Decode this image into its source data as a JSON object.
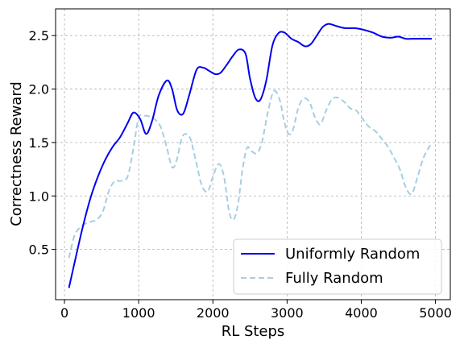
{
  "chart_data": {
    "type": "line",
    "title": "",
    "xlabel": "RL Steps",
    "ylabel": "Correctness Reward",
    "xlim": [
      -120,
      5200
    ],
    "ylim": [
      0.03,
      2.75
    ],
    "x_ticks": [
      0,
      1000,
      2000,
      3000,
      4000,
      5000
    ],
    "y_ticks": [
      0.5,
      1.0,
      1.5,
      2.0,
      2.5
    ],
    "x_tick_labels": [
      "0",
      "1000",
      "2000",
      "3000",
      "4000",
      "5000"
    ],
    "y_tick_labels": [
      "0.5",
      "1.0",
      "1.5",
      "2.0",
      "2.5"
    ],
    "grid": true,
    "legend_position": "lower-right",
    "series": [
      {
        "name": "Uniformly Random",
        "color": "#0000ee",
        "style": "solid",
        "x": [
          60,
          150,
          250,
          350,
          450,
          550,
          650,
          750,
          850,
          930,
          1020,
          1100,
          1180,
          1270,
          1380,
          1450,
          1520,
          1600,
          1680,
          1780,
          1870,
          1950,
          2030,
          2100,
          2180,
          2270,
          2350,
          2440,
          2500,
          2570,
          2640,
          2720,
          2800,
          2880,
          2960,
          3060,
          3150,
          3240,
          3320,
          3400,
          3480,
          3560,
          3660,
          3780,
          3900,
          4000,
          4150,
          4280,
          4400,
          4500,
          4600,
          4680,
          4760,
          4840,
          4950
        ],
        "y": [
          0.14,
          0.42,
          0.72,
          0.98,
          1.18,
          1.34,
          1.46,
          1.55,
          1.68,
          1.78,
          1.72,
          1.58,
          1.7,
          1.94,
          2.08,
          2.0,
          1.8,
          1.77,
          1.94,
          2.18,
          2.2,
          2.17,
          2.14,
          2.15,
          2.22,
          2.31,
          2.37,
          2.33,
          2.1,
          1.92,
          1.9,
          2.08,
          2.4,
          2.52,
          2.53,
          2.47,
          2.44,
          2.4,
          2.42,
          2.5,
          2.58,
          2.61,
          2.59,
          2.57,
          2.57,
          2.56,
          2.53,
          2.49,
          2.48,
          2.49,
          2.47,
          2.47,
          2.47,
          2.47,
          2.47
        ]
      },
      {
        "name": "Fully Random",
        "color": "#a6cee3",
        "style": "dashed",
        "x": [
          60,
          130,
          200,
          280,
          360,
          440,
          520,
          600,
          680,
          760,
          850,
          930,
          1000,
          1080,
          1160,
          1230,
          1300,
          1380,
          1450,
          1510,
          1580,
          1640,
          1700,
          1780,
          1850,
          1930,
          2000,
          2080,
          2150,
          2220,
          2280,
          2340,
          2400,
          2460,
          2520,
          2590,
          2660,
          2740,
          2820,
          2900,
          2960,
          3020,
          3080,
          3150,
          3220,
          3300,
          3380,
          3450,
          3520,
          3600,
          3680,
          3770,
          3850,
          3930,
          4020,
          4100,
          4200,
          4280,
          4360,
          4440,
          4520,
          4600,
          4680,
          4760,
          4840,
          4950
        ],
        "y": [
          0.42,
          0.62,
          0.7,
          0.74,
          0.76,
          0.78,
          0.86,
          1.05,
          1.14,
          1.14,
          1.18,
          1.45,
          1.73,
          1.75,
          1.74,
          1.71,
          1.64,
          1.45,
          1.27,
          1.33,
          1.54,
          1.58,
          1.53,
          1.3,
          1.1,
          1.04,
          1.18,
          1.3,
          1.18,
          0.85,
          0.78,
          0.93,
          1.25,
          1.45,
          1.42,
          1.4,
          1.5,
          1.78,
          1.98,
          1.9,
          1.7,
          1.58,
          1.62,
          1.82,
          1.91,
          1.88,
          1.73,
          1.67,
          1.79,
          1.9,
          1.92,
          1.88,
          1.82,
          1.8,
          1.72,
          1.65,
          1.6,
          1.53,
          1.46,
          1.36,
          1.25,
          1.08,
          1.02,
          1.18,
          1.36,
          1.5
        ]
      }
    ]
  }
}
